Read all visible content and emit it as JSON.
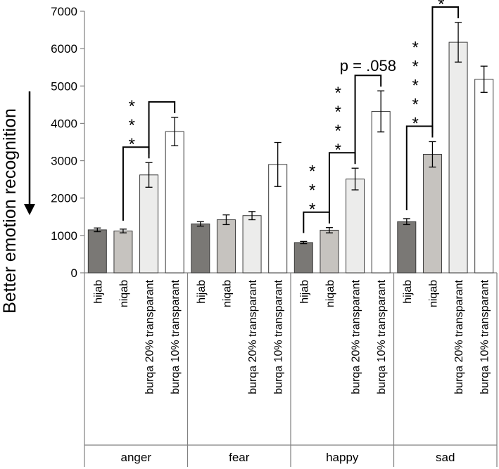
{
  "chart_data": {
    "type": "bar",
    "ylabel": "Better emotion recognition",
    "ylim": [
      0,
      7000
    ],
    "yticks": [
      0,
      1000,
      2000,
      3000,
      4000,
      5000,
      6000,
      7000
    ],
    "groups": [
      {
        "name": "anger",
        "bars": [
          {
            "label": "hijab",
            "value": 1150,
            "error": 50
          },
          {
            "label": "niqab",
            "value": 1120,
            "error": 50
          },
          {
            "label": "burqa 20% transparant",
            "value": 2620,
            "error": 330
          },
          {
            "label": "burqa 10% transparant",
            "value": 3780,
            "error": 380
          }
        ]
      },
      {
        "name": "fear",
        "bars": [
          {
            "label": "hijab",
            "value": 1310,
            "error": 60
          },
          {
            "label": "niqab",
            "value": 1420,
            "error": 130
          },
          {
            "label": "burqa 20% transparant",
            "value": 1530,
            "error": 110
          },
          {
            "label": "burqa 10% transparant",
            "value": 2900,
            "error": 590
          }
        ]
      },
      {
        "name": "happy",
        "bars": [
          {
            "label": "hijab",
            "value": 810,
            "error": 30
          },
          {
            "label": "niqab",
            "value": 1140,
            "error": 70
          },
          {
            "label": "burqa 20% transparant",
            "value": 2510,
            "error": 290
          },
          {
            "label": "burqa 10% transparant",
            "value": 4320,
            "error": 550
          }
        ]
      },
      {
        "name": "sad",
        "bars": [
          {
            "label": "hijab",
            "value": 1370,
            "error": 80
          },
          {
            "label": "niqab",
            "value": 3170,
            "error": 340
          },
          {
            "label": "burqa 20% transparant",
            "value": 6170,
            "error": 530
          },
          {
            "label": "burqa 10% transparant",
            "value": 5180,
            "error": 350
          }
        ]
      }
    ],
    "bar_colors": [
      "#7a7875",
      "#c6c3bf",
      "#ececeb",
      "#ffffff"
    ],
    "significance": [
      {
        "group": 0,
        "from": 1,
        "to": 2,
        "label": "* * *"
      },
      {
        "group": 0,
        "from": 2,
        "to": 3,
        "label": ""
      },
      {
        "group": 2,
        "from": 0,
        "to": 1,
        "label": "* * *"
      },
      {
        "group": 2,
        "from": 1,
        "to": 2,
        "label": "* * * *"
      },
      {
        "group": 2,
        "from": 2,
        "to": 3,
        "label": "p = .058"
      },
      {
        "group": 3,
        "from": 0,
        "to": 1,
        "label": "* * * * *"
      },
      {
        "group": 3,
        "from": 1,
        "to": 2,
        "label": "* * * *"
      }
    ]
  }
}
